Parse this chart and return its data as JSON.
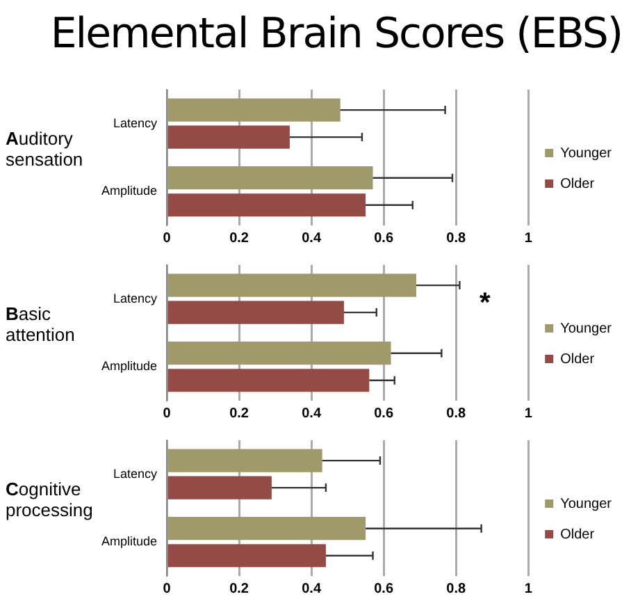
{
  "chart_data": [
    {
      "type": "bar",
      "title": "Elemental Brain Scores (EBS)",
      "ylabel": "Auditory sensation",
      "orientation": "horizontal",
      "categories": [
        "Latency",
        "Amplitude"
      ],
      "series": [
        {
          "name": "Younger",
          "color": "#a09a6a",
          "values": [
            0.48,
            0.57
          ],
          "errors": [
            [
              0.48,
              0.77
            ],
            [
              0.57,
              0.79
            ]
          ]
        },
        {
          "name": "Older",
          "color": "#944a45",
          "values": [
            0.34,
            0.55
          ],
          "errors": [
            [
              0.34,
              0.54
            ],
            [
              0.55,
              0.68
            ]
          ]
        }
      ],
      "xlim": [
        0,
        1
      ],
      "xticks": [
        0,
        0.2,
        0.4,
        0.6,
        0.8,
        1
      ],
      "grid": "x",
      "legend": "right"
    },
    {
      "type": "bar",
      "ylabel": "Basic attention",
      "orientation": "horizontal",
      "categories": [
        "Latency",
        "Amplitude"
      ],
      "series": [
        {
          "name": "Younger",
          "color": "#a09a6a",
          "values": [
            0.69,
            0.62
          ],
          "errors": [
            [
              0.69,
              0.81
            ],
            [
              0.62,
              0.76
            ]
          ]
        },
        {
          "name": "Older",
          "color": "#944a45",
          "values": [
            0.49,
            0.56
          ],
          "errors": [
            [
              0.49,
              0.58
            ],
            [
              0.56,
              0.63
            ]
          ]
        }
      ],
      "xlim": [
        0,
        1
      ],
      "xticks": [
        0,
        0.2,
        0.4,
        0.6,
        0.8,
        1
      ],
      "grid": "x",
      "legend": "right",
      "annotations": [
        "*"
      ]
    },
    {
      "type": "bar",
      "ylabel": "Cognitive processing",
      "orientation": "horizontal",
      "categories": [
        "Latency",
        "Amplitude"
      ],
      "series": [
        {
          "name": "Younger",
          "color": "#a09a6a",
          "values": [
            0.43,
            0.55
          ],
          "errors": [
            [
              0.43,
              0.59
            ],
            [
              0.55,
              0.87
            ]
          ]
        },
        {
          "name": "Older",
          "color": "#944a45",
          "values": [
            0.29,
            0.44
          ],
          "errors": [
            [
              0.29,
              0.44
            ],
            [
              0.44,
              0.57
            ]
          ]
        }
      ],
      "xlim": [
        0,
        1
      ],
      "xticks": [
        0,
        0.2,
        0.4,
        0.6,
        0.8,
        1
      ],
      "grid": "x",
      "legend": "right"
    }
  ]
}
